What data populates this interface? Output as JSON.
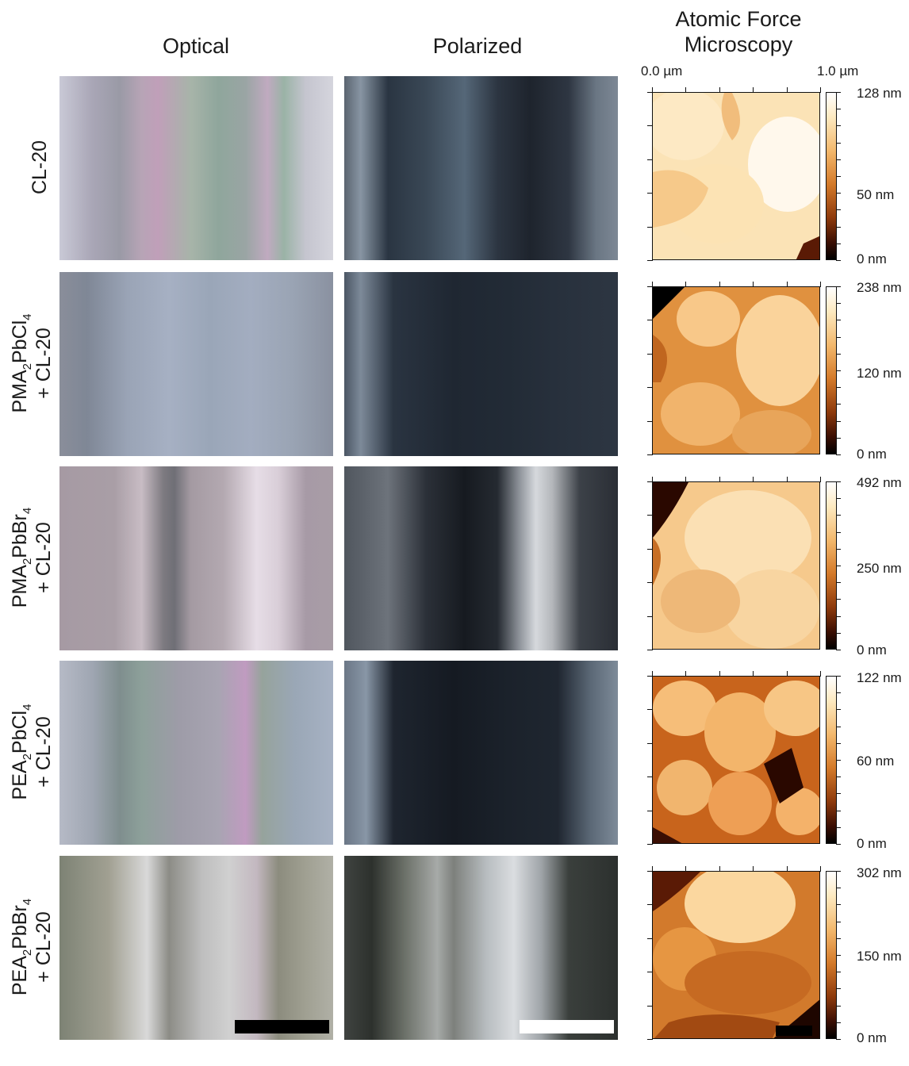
{
  "headers": {
    "optical": "Optical",
    "polarized": "Polarized",
    "afm_line1": "Atomic Force",
    "afm_line2": "Microscopy"
  },
  "afm_axis": {
    "start": "0.0 µm",
    "end": "1.0 µm"
  },
  "rows": [
    {
      "line1": "CL-20",
      "line2": "",
      "cb_top": "128 nm",
      "cb_mid": "50 nm",
      "cb_bottom": "0 nm"
    },
    {
      "line1_base": "PMA",
      "line1_sub1": "2",
      "line1_mid": "PbCl",
      "line1_sub2": "4",
      "line2": "+ CL-20",
      "cb_top": "238 nm",
      "cb_mid": "120 nm",
      "cb_bottom": "0 nm"
    },
    {
      "line1_base": "PMA",
      "line1_sub1": "2",
      "line1_mid": "PbBr",
      "line1_sub2": "4",
      "line2": "+ CL-20",
      "cb_top": "492 nm",
      "cb_mid": "250 nm",
      "cb_bottom": "0 nm"
    },
    {
      "line1_base": "PEA",
      "line1_sub1": "2",
      "line1_mid": "PbCl",
      "line1_sub2": "4",
      "line2": "+ CL-20",
      "cb_top": "122 nm",
      "cb_mid": "60 nm",
      "cb_bottom": "0 nm"
    },
    {
      "line1_base": "PEA",
      "line1_sub1": "2",
      "line1_mid": "PbBr",
      "line1_sub2": "4",
      "line2": "+ CL-20",
      "cb_top": "302 nm",
      "cb_mid": "150 nm",
      "cb_bottom": "0 nm"
    }
  ],
  "colors": {
    "afm_light": "#fde2b0",
    "afm_mid": "#e49a45",
    "afm_dark": "#5a1a05",
    "optical_base": "#9a9aa8",
    "polarized_base": "#2a3038"
  }
}
